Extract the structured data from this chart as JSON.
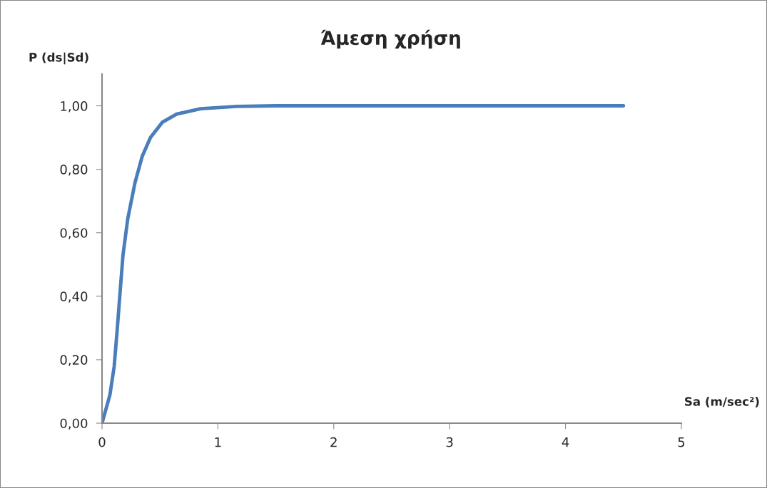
{
  "chart_data": {
    "type": "line",
    "title": "Άμεση χρήση",
    "xlabel": "Sa (m/sec²)",
    "ylabel": "P (ds|Sd)",
    "series": [
      {
        "color": "#4a7ebb",
        "x": [
          0,
          0.068,
          0.105,
          0.13,
          0.154,
          0.181,
          0.222,
          0.284,
          0.346,
          0.418,
          0.52,
          0.644,
          0.85,
          1.16,
          1.5,
          2.5,
          3.5,
          4.5
        ],
        "values": [
          0,
          0.089,
          0.179,
          0.29,
          0.404,
          0.53,
          0.644,
          0.757,
          0.84,
          0.9,
          0.948,
          0.974,
          0.991,
          0.998,
          1.0,
          1.0,
          1.0,
          1.0
        ]
      }
    ],
    "xlim": [
      0,
      5
    ],
    "xticks": [
      0,
      1,
      2,
      3,
      4,
      5
    ],
    "ylim": [
      0,
      1.1
    ],
    "yticks": [
      {
        "value": 0,
        "label": "0,00"
      },
      {
        "value": 0.2,
        "label": "0,20"
      },
      {
        "value": 0.4,
        "label": "0,40"
      },
      {
        "value": 0.6,
        "label": "0,60"
      },
      {
        "value": 0.8,
        "label": "0,80"
      },
      {
        "value": 1.0,
        "label": "1,00"
      }
    ],
    "grid": false,
    "legend": false,
    "marker": "none",
    "line_style": "solid"
  }
}
